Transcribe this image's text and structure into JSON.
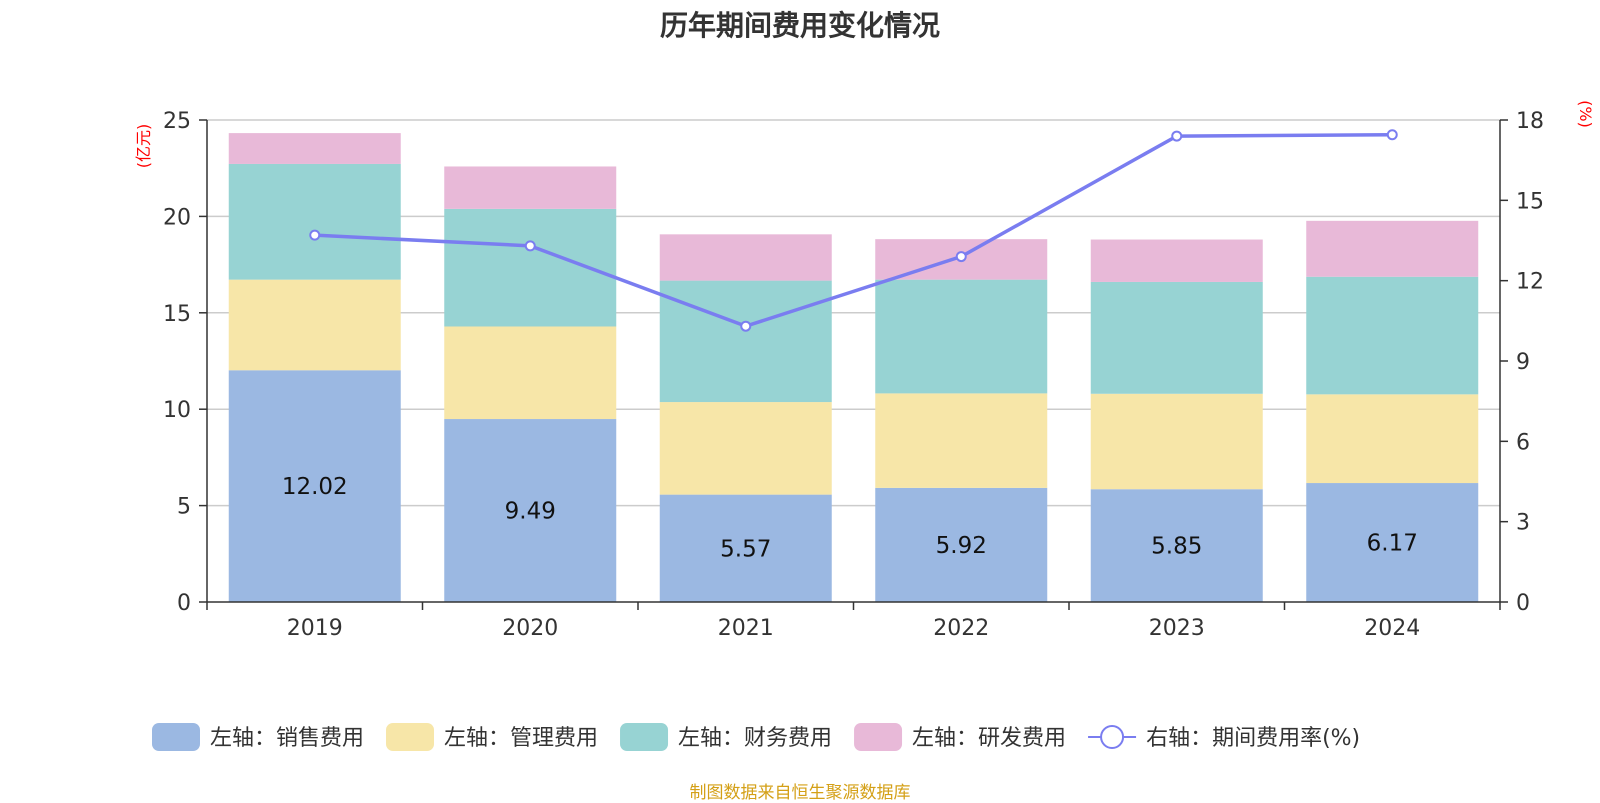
{
  "title": "历年期间费用变化情况",
  "source": "制图数据来自恒生聚源数据库",
  "chart_data": {
    "type": "bar",
    "stacked": true,
    "categories": [
      "2019",
      "2020",
      "2021",
      "2022",
      "2023",
      "2024"
    ],
    "left_axis": {
      "unit": "(亿元)",
      "ylim": [
        0,
        25
      ],
      "ticks": [
        0,
        5,
        10,
        15,
        20,
        25
      ]
    },
    "right_axis": {
      "unit": "(%)",
      "ylim": [
        0,
        18
      ],
      "ticks": [
        0,
        3,
        6,
        9,
        12,
        15,
        18
      ]
    },
    "series": [
      {
        "name": "左轴：销售费用",
        "axis": "left",
        "color": "#9bb8e2",
        "values": [
          12.02,
          9.49,
          5.57,
          5.92,
          5.85,
          6.17
        ],
        "show_labels": true
      },
      {
        "name": "左轴：管理费用",
        "axis": "left",
        "color": "#f7e6a8",
        "values": [
          4.7,
          4.8,
          4.8,
          4.9,
          4.95,
          4.6
        ]
      },
      {
        "name": "左轴：财务费用",
        "axis": "left",
        "color": "#97d3d3",
        "values": [
          6.0,
          6.1,
          6.3,
          5.9,
          5.8,
          6.1
        ]
      },
      {
        "name": "左轴：研发费用",
        "axis": "left",
        "color": "#e8b9d8",
        "values": [
          1.6,
          2.2,
          2.4,
          2.1,
          2.2,
          2.9
        ]
      },
      {
        "name": "右轴：期间费用率(%)",
        "axis": "right",
        "type": "line",
        "color": "#7a7df0",
        "values": [
          13.7,
          13.3,
          10.3,
          12.9,
          17.4,
          17.45
        ]
      }
    ],
    "grid": true,
    "legend_position": "bottom"
  }
}
